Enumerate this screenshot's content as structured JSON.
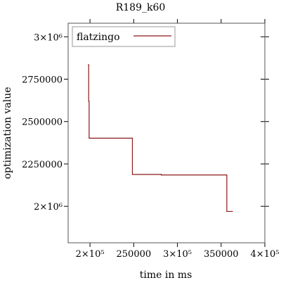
{
  "chart_data": {
    "type": "line",
    "title": "R189_k60",
    "xlabel": "time in ms",
    "ylabel": "optimization value",
    "xlim": [
      175000,
      400000
    ],
    "ylim": [
      1785000,
      3080000
    ],
    "x_ticks": [
      {
        "value": 200000,
        "label": "2×10⁵"
      },
      {
        "value": 250000,
        "label": "250000"
      },
      {
        "value": 300000,
        "label": "3×10⁵"
      },
      {
        "value": 350000,
        "label": "350000"
      },
      {
        "value": 400000,
        "label": "4×10⁵"
      }
    ],
    "y_ticks": [
      {
        "value": 2000000,
        "label": "2×10⁶"
      },
      {
        "value": 2250000,
        "label": "2250000"
      },
      {
        "value": 2500000,
        "label": "2500000"
      },
      {
        "value": 2750000,
        "label": "2750000"
      },
      {
        "value": 3000000,
        "label": "3×10⁶"
      }
    ],
    "grid": false,
    "legend_position": "top-left",
    "step": true,
    "series": [
      {
        "name": "flatzingo",
        "color": "#8b1a1a",
        "x": [
          198000,
          198500,
          199000,
          248000,
          248500,
          281000,
          281500,
          356000,
          356500,
          363000
        ],
        "y": [
          2835000,
          2620000,
          2402000,
          2402000,
          2188000,
          2188000,
          2185000,
          2185000,
          1970000,
          1970000
        ]
      }
    ]
  }
}
